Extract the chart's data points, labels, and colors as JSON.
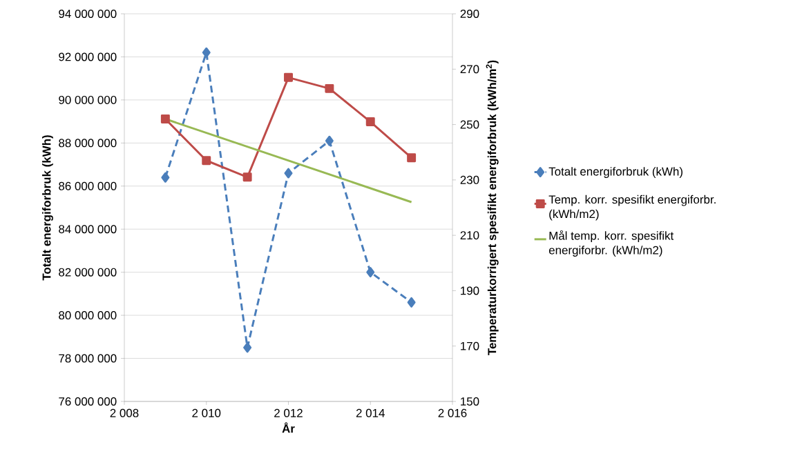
{
  "chart_data": {
    "type": "line",
    "xlabel": "År",
    "ylabel": "Totalt energiforbruk (kWh)",
    "y2label": "Temperaturkorrigert spesifikt energiforbruk (kWh/m$^{2}$)",
    "x": [
      2009,
      2010,
      2011,
      2012,
      2013,
      2014,
      2015
    ],
    "xlim": [
      2008,
      2016
    ],
    "xticks": [
      {
        "value": 2008,
        "label": "2 008"
      },
      {
        "value": 2010,
        "label": "2 010"
      },
      {
        "value": 2012,
        "label": "2 012"
      },
      {
        "value": 2014,
        "label": "2 014"
      },
      {
        "value": 2016,
        "label": "2 016"
      }
    ],
    "ylim": [
      76000000,
      94000000
    ],
    "yticks": [
      {
        "value": 76000000,
        "label": "76 000 000"
      },
      {
        "value": 78000000,
        "label": "78 000 000"
      },
      {
        "value": 80000000,
        "label": "80 000 000"
      },
      {
        "value": 82000000,
        "label": "82 000 000"
      },
      {
        "value": 84000000,
        "label": "84 000 000"
      },
      {
        "value": 86000000,
        "label": "86 000 000"
      },
      {
        "value": 88000000,
        "label": "88 000 000"
      },
      {
        "value": 90000000,
        "label": "90 000 000"
      },
      {
        "value": 92000000,
        "label": "92 000 000"
      },
      {
        "value": 94000000,
        "label": "94 000 000"
      }
    ],
    "y2lim": [
      150,
      290
    ],
    "y2ticks": [
      150,
      170,
      190,
      210,
      230,
      250,
      270,
      290
    ],
    "grid": "y",
    "legend": "right",
    "series": [
      {
        "name": "Totalt energiforbruk (kWh)",
        "color": "#4a7ebb",
        "marker": "diamond",
        "line_style": "dashed",
        "values": [
          86400000,
          92200000,
          78500000,
          86600000,
          88100000,
          82000000,
          80600000
        ]
      },
      {
        "name": "Temp. korr. spesifikt energiforbr. (kWh/m2)",
        "color": "#be4b48",
        "marker": "square",
        "line_style": "solid",
        "axis": "y2",
        "values": [
          252,
          237,
          231,
          267,
          263,
          251,
          238
        ]
      },
      {
        "name": "Mål temp. korr. spesifikt energiforbr. (kWh/m2)",
        "color": "#98b954",
        "marker": "none",
        "line_style": "solid",
        "axis": "y2",
        "x": [
          2009,
          2015
        ],
        "values": [
          252,
          222
        ]
      }
    ]
  }
}
